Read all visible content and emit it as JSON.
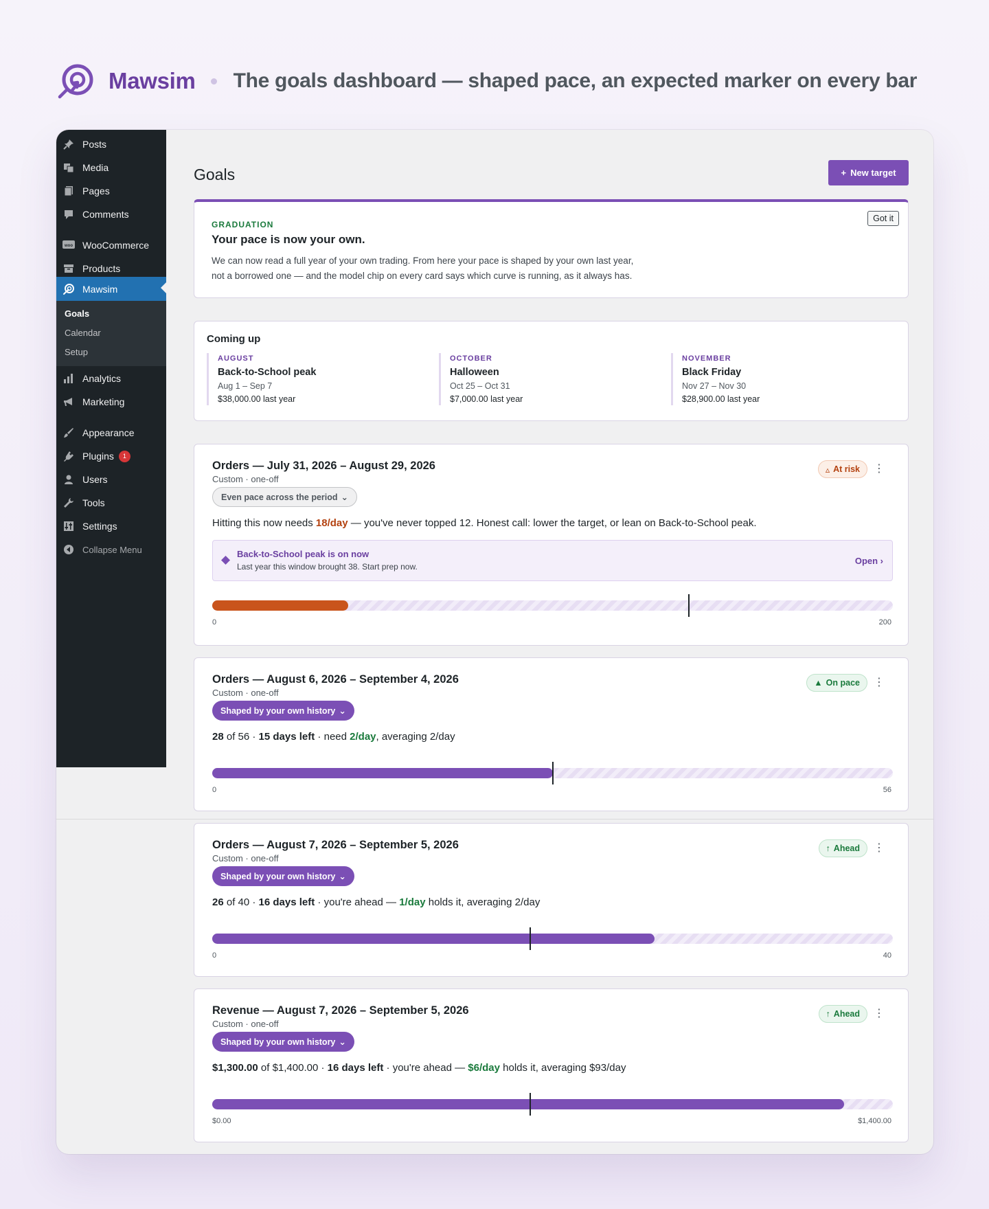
{
  "header": {
    "brand": "Mawsim",
    "tagline": "The goals dashboard — shaped pace, an expected marker on every bar"
  },
  "sidebar": {
    "items": [
      {
        "label": "Posts",
        "icon": "pin-icon"
      },
      {
        "label": "Media",
        "icon": "media-icon"
      },
      {
        "label": "Pages",
        "icon": "pages-icon"
      },
      {
        "label": "Comments",
        "icon": "comment-icon"
      },
      {
        "label": "WooCommerce",
        "icon": "woo-icon"
      },
      {
        "label": "Products",
        "icon": "archive-icon"
      },
      {
        "label": "Mawsim",
        "icon": "mawsim-icon"
      },
      {
        "label": "Analytics",
        "icon": "chart-icon"
      },
      {
        "label": "Marketing",
        "icon": "megaphone-icon"
      },
      {
        "label": "Appearance",
        "icon": "brush-icon"
      },
      {
        "label": "Plugins",
        "icon": "plugin-icon"
      },
      {
        "label": "Users",
        "icon": "user-icon"
      },
      {
        "label": "Tools",
        "icon": "wrench-icon"
      },
      {
        "label": "Settings",
        "icon": "sliders-icon"
      },
      {
        "label": "Collapse Menu",
        "icon": "collapse-icon"
      }
    ],
    "submenu": [
      "Goals",
      "Calendar",
      "Setup"
    ],
    "plugins_badge": "1"
  },
  "main": {
    "title": "Goals",
    "new_target_label": "New target"
  },
  "graduation": {
    "eyebrow": "GRADUATION",
    "title": "Your pace is now your own.",
    "body_line1": "We can now read a full year of your own trading. From here your pace is shaped by your own last year,",
    "body_line2": "not a borrowed one — and the model chip on every card says which curve is running, as it always has.",
    "dismiss": "Got it"
  },
  "coming_up": {
    "title": "Coming up",
    "events": [
      {
        "month": "AUGUST",
        "name": "Back-to-School peak",
        "dates": "Aug 1 – Sep 7",
        "last_year": "$38,000.00 last year"
      },
      {
        "month": "OCTOBER",
        "name": "Halloween",
        "dates": "Oct 25 – Oct 31",
        "last_year": "$7,000.00 last year"
      },
      {
        "month": "NOVEMBER",
        "name": "Black Friday",
        "dates": "Nov 27 – Nov 30",
        "last_year": "$28,900.00 last year"
      }
    ]
  },
  "goals": [
    {
      "title": "Orders — July 31, 2026 – August 29, 2026",
      "subtitle": "Custom · one-off",
      "model_chip": "Even pace across the period",
      "status": "At risk",
      "pace": {
        "pre": "Hitting this now needs ",
        "need": "18/day",
        "post": " — you've never topped 12. Honest call: lower the target, or lean on Back-to-School peak."
      },
      "callout": {
        "title": "Back-to-School peak is on now",
        "text": "Last year this window brought 38. Start prep now.",
        "action": "Open ›"
      },
      "progress": 0.2,
      "expected": 0.7,
      "axis_min": "0",
      "axis_max": "200",
      "color": "#c9541c"
    },
    {
      "title": "Orders — August 6, 2026 – September 4, 2026",
      "subtitle": "Custom · one-off",
      "model_chip": "Shaped by your own history",
      "status": "On pace",
      "pace": {
        "current": "28",
        "of": " of 56 · ",
        "days": "15 days left",
        "mid": " · need ",
        "rate": "2/day",
        "post": ", averaging 2/day"
      },
      "progress": 0.5,
      "expected": 0.5,
      "axis_min": "0",
      "axis_max": "56",
      "color": "#7b4fb5"
    },
    {
      "title": "Orders — August 7, 2026 – September 5, 2026",
      "subtitle": "Custom · one-off",
      "model_chip": "Shaped by your own history",
      "status": "Ahead",
      "pace": {
        "current": "26",
        "of": " of 40 · ",
        "days": "16 days left",
        "mid": " · you're ahead — ",
        "rate": "1/day",
        "post": " holds it, averaging 2/day"
      },
      "progress": 0.65,
      "expected": 0.467,
      "axis_min": "0",
      "axis_max": "40",
      "color": "#7b4fb5"
    },
    {
      "title": "Revenue — August 7, 2026 – September 5, 2026",
      "subtitle": "Custom · one-off",
      "model_chip": "Shaped by your own history",
      "status": "Ahead",
      "pace": {
        "current": "$1,300.00",
        "of": " of $1,400.00 · ",
        "days": "16 days left",
        "mid": " · you're ahead — ",
        "rate": "$6/day",
        "post": " holds it, averaging $93/day"
      },
      "progress": 0.9286,
      "expected": 0.467,
      "axis_min": "$0.00",
      "axis_max": "$1,400.00",
      "color": "#7b4fb5"
    }
  ]
}
